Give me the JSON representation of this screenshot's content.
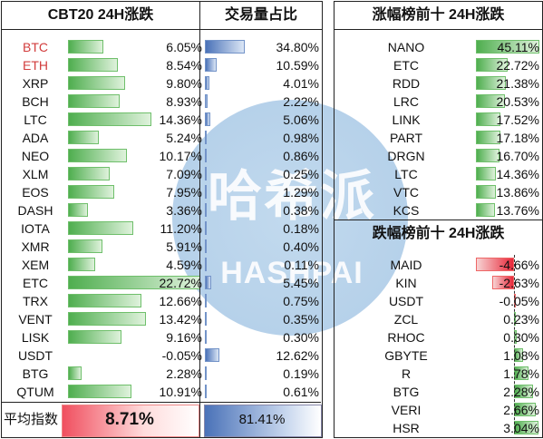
{
  "left_table": {
    "title": "CBT20 24H涨跌",
    "rows": [
      {
        "name": "BTC",
        "change": "6.05%",
        "value": 6.05,
        "color": "#d23c3c"
      },
      {
        "name": "ETH",
        "change": "8.54%",
        "value": 8.54,
        "color": "#d23c3c"
      },
      {
        "name": "XRP",
        "change": "9.80%",
        "value": 9.8
      },
      {
        "name": "BCH",
        "change": "8.93%",
        "value": 8.93
      },
      {
        "name": "LTC",
        "change": "14.36%",
        "value": 14.36
      },
      {
        "name": "ADA",
        "change": "5.24%",
        "value": 5.24
      },
      {
        "name": "NEO",
        "change": "10.17%",
        "value": 10.17
      },
      {
        "name": "XLM",
        "change": "7.09%",
        "value": 7.09
      },
      {
        "name": "EOS",
        "change": "7.95%",
        "value": 7.95
      },
      {
        "name": "DASH",
        "change": "3.36%",
        "value": 3.36
      },
      {
        "name": "IOTA",
        "change": "11.20%",
        "value": 11.2
      },
      {
        "name": "XMR",
        "change": "5.91%",
        "value": 5.91
      },
      {
        "name": "XEM",
        "change": "4.59%",
        "value": 4.59
      },
      {
        "name": "ETC",
        "change": "22.72%",
        "value": 22.72
      },
      {
        "name": "TRX",
        "change": "12.66%",
        "value": 12.66
      },
      {
        "name": "VENT",
        "change": "13.42%",
        "value": 13.42
      },
      {
        "name": "LISK",
        "change": "9.16%",
        "value": 9.16
      },
      {
        "name": "USDT",
        "change": "-0.05%",
        "value": -0.05
      },
      {
        "name": "BTG",
        "change": "2.28%",
        "value": 2.28
      },
      {
        "name": "QTUM",
        "change": "10.91%",
        "value": 10.91
      }
    ],
    "avg_label": "平均指数",
    "avg_value": "8.71%"
  },
  "volume_table": {
    "title": "交易量占比",
    "rows": [
      {
        "text": "34.80%",
        "value": 34.8
      },
      {
        "text": "10.59%",
        "value": 10.59
      },
      {
        "text": "4.01%",
        "value": 4.01
      },
      {
        "text": "2.22%",
        "value": 2.22
      },
      {
        "text": "5.06%",
        "value": 5.06
      },
      {
        "text": "0.98%",
        "value": 0.98
      },
      {
        "text": "0.86%",
        "value": 0.86
      },
      {
        "text": "0.25%",
        "value": 0.25
      },
      {
        "text": "1.29%",
        "value": 1.29
      },
      {
        "text": "0.38%",
        "value": 0.38
      },
      {
        "text": "0.18%",
        "value": 0.18
      },
      {
        "text": "0.40%",
        "value": 0.4
      },
      {
        "text": "0.11%",
        "value": 0.11
      },
      {
        "text": "5.45%",
        "value": 5.45
      },
      {
        "text": "0.75%",
        "value": 0.75
      },
      {
        "text": "0.35%",
        "value": 0.35
      },
      {
        "text": "0.30%",
        "value": 0.3
      },
      {
        "text": "12.62%",
        "value": 12.62
      },
      {
        "text": "0.19%",
        "value": 0.19
      },
      {
        "text": "0.61%",
        "value": 0.61
      }
    ],
    "total": "81.41%"
  },
  "gainers": {
    "title": "涨幅榜前十 24H涨跌",
    "rows": [
      {
        "name": "NANO",
        "change": "45.11%",
        "value": 45.11
      },
      {
        "name": "ETC",
        "change": "22.72%",
        "value": 22.72
      },
      {
        "name": "RDD",
        "change": "21.38%",
        "value": 21.38
      },
      {
        "name": "LRC",
        "change": "20.53%",
        "value": 20.53
      },
      {
        "name": "LINK",
        "change": "17.52%",
        "value": 17.52
      },
      {
        "name": "PART",
        "change": "17.18%",
        "value": 17.18
      },
      {
        "name": "DRGN",
        "change": "16.70%",
        "value": 16.7
      },
      {
        "name": "LTC",
        "change": "14.36%",
        "value": 14.36
      },
      {
        "name": "VTC",
        "change": "13.86%",
        "value": 13.86
      },
      {
        "name": "KCS",
        "change": "13.76%",
        "value": 13.76
      }
    ]
  },
  "losers": {
    "title": "跌幅榜前十 24H涨跌",
    "rows": [
      {
        "name": "MAID",
        "change": "-4.66%",
        "value": -4.66
      },
      {
        "name": "KIN",
        "change": "-2.63%",
        "value": -2.63
      },
      {
        "name": "USDT",
        "change": "-0.05%",
        "value": -0.05
      },
      {
        "name": "ZCL",
        "change": "0.23%",
        "value": 0.23
      },
      {
        "name": "RHOC",
        "change": "0.30%",
        "value": 0.3
      },
      {
        "name": "GBYTE",
        "change": "1.08%",
        "value": 1.08
      },
      {
        "name": "R",
        "change": "1.78%",
        "value": 1.78
      },
      {
        "name": "BTG",
        "change": "2.28%",
        "value": 2.28
      },
      {
        "name": "VERI",
        "change": "2.66%",
        "value": 2.66
      },
      {
        "name": "HSR",
        "change": "3.04%",
        "value": 3.04
      }
    ]
  },
  "watermark": {
    "chinese": "哈希派",
    "latin": "HASHPAI"
  },
  "colors": {
    "gain_bar": "#4fae4f",
    "volume_bar": "#4a72b8",
    "loss_bar": "#e8283a",
    "avg_box": "#f04f5f",
    "total_box": "#4a72b8"
  }
}
